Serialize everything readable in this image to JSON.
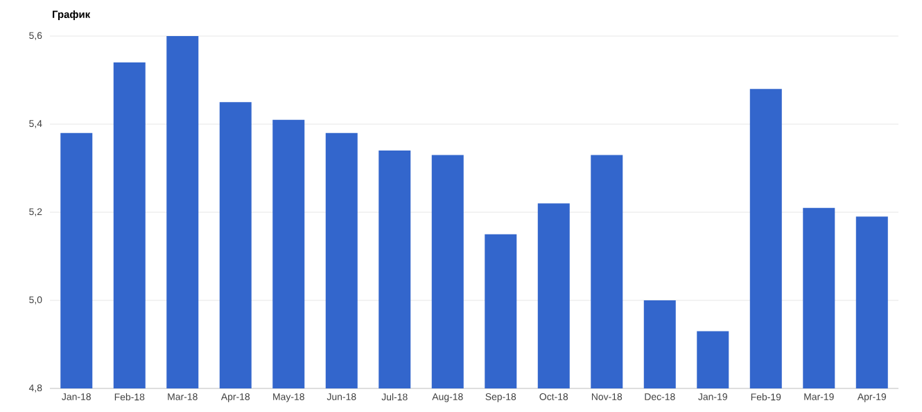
{
  "chart_data": {
    "type": "bar",
    "title": "График",
    "categories": [
      "Jan-18",
      "Feb-18",
      "Mar-18",
      "Apr-18",
      "May-18",
      "Jun-18",
      "Jul-18",
      "Aug-18",
      "Sep-18",
      "Oct-18",
      "Nov-18",
      "Dec-18",
      "Jan-19",
      "Feb-19",
      "Mar-19",
      "Apr-19"
    ],
    "values": [
      5.38,
      5.54,
      5.6,
      5.45,
      5.41,
      5.38,
      5.34,
      5.33,
      5.15,
      5.22,
      5.33,
      5.0,
      4.93,
      5.48,
      5.21,
      5.19
    ],
    "color": "#3366cc",
    "ylim": [
      4.8,
      5.6
    ],
    "yticks": [
      {
        "value": 4.8,
        "label": "4,8"
      },
      {
        "value": 5.0,
        "label": "5,0"
      },
      {
        "value": 5.2,
        "label": "5,2"
      },
      {
        "value": 5.4,
        "label": "5,4"
      },
      {
        "value": 5.6,
        "label": "5,6"
      }
    ],
    "grid": "y"
  }
}
